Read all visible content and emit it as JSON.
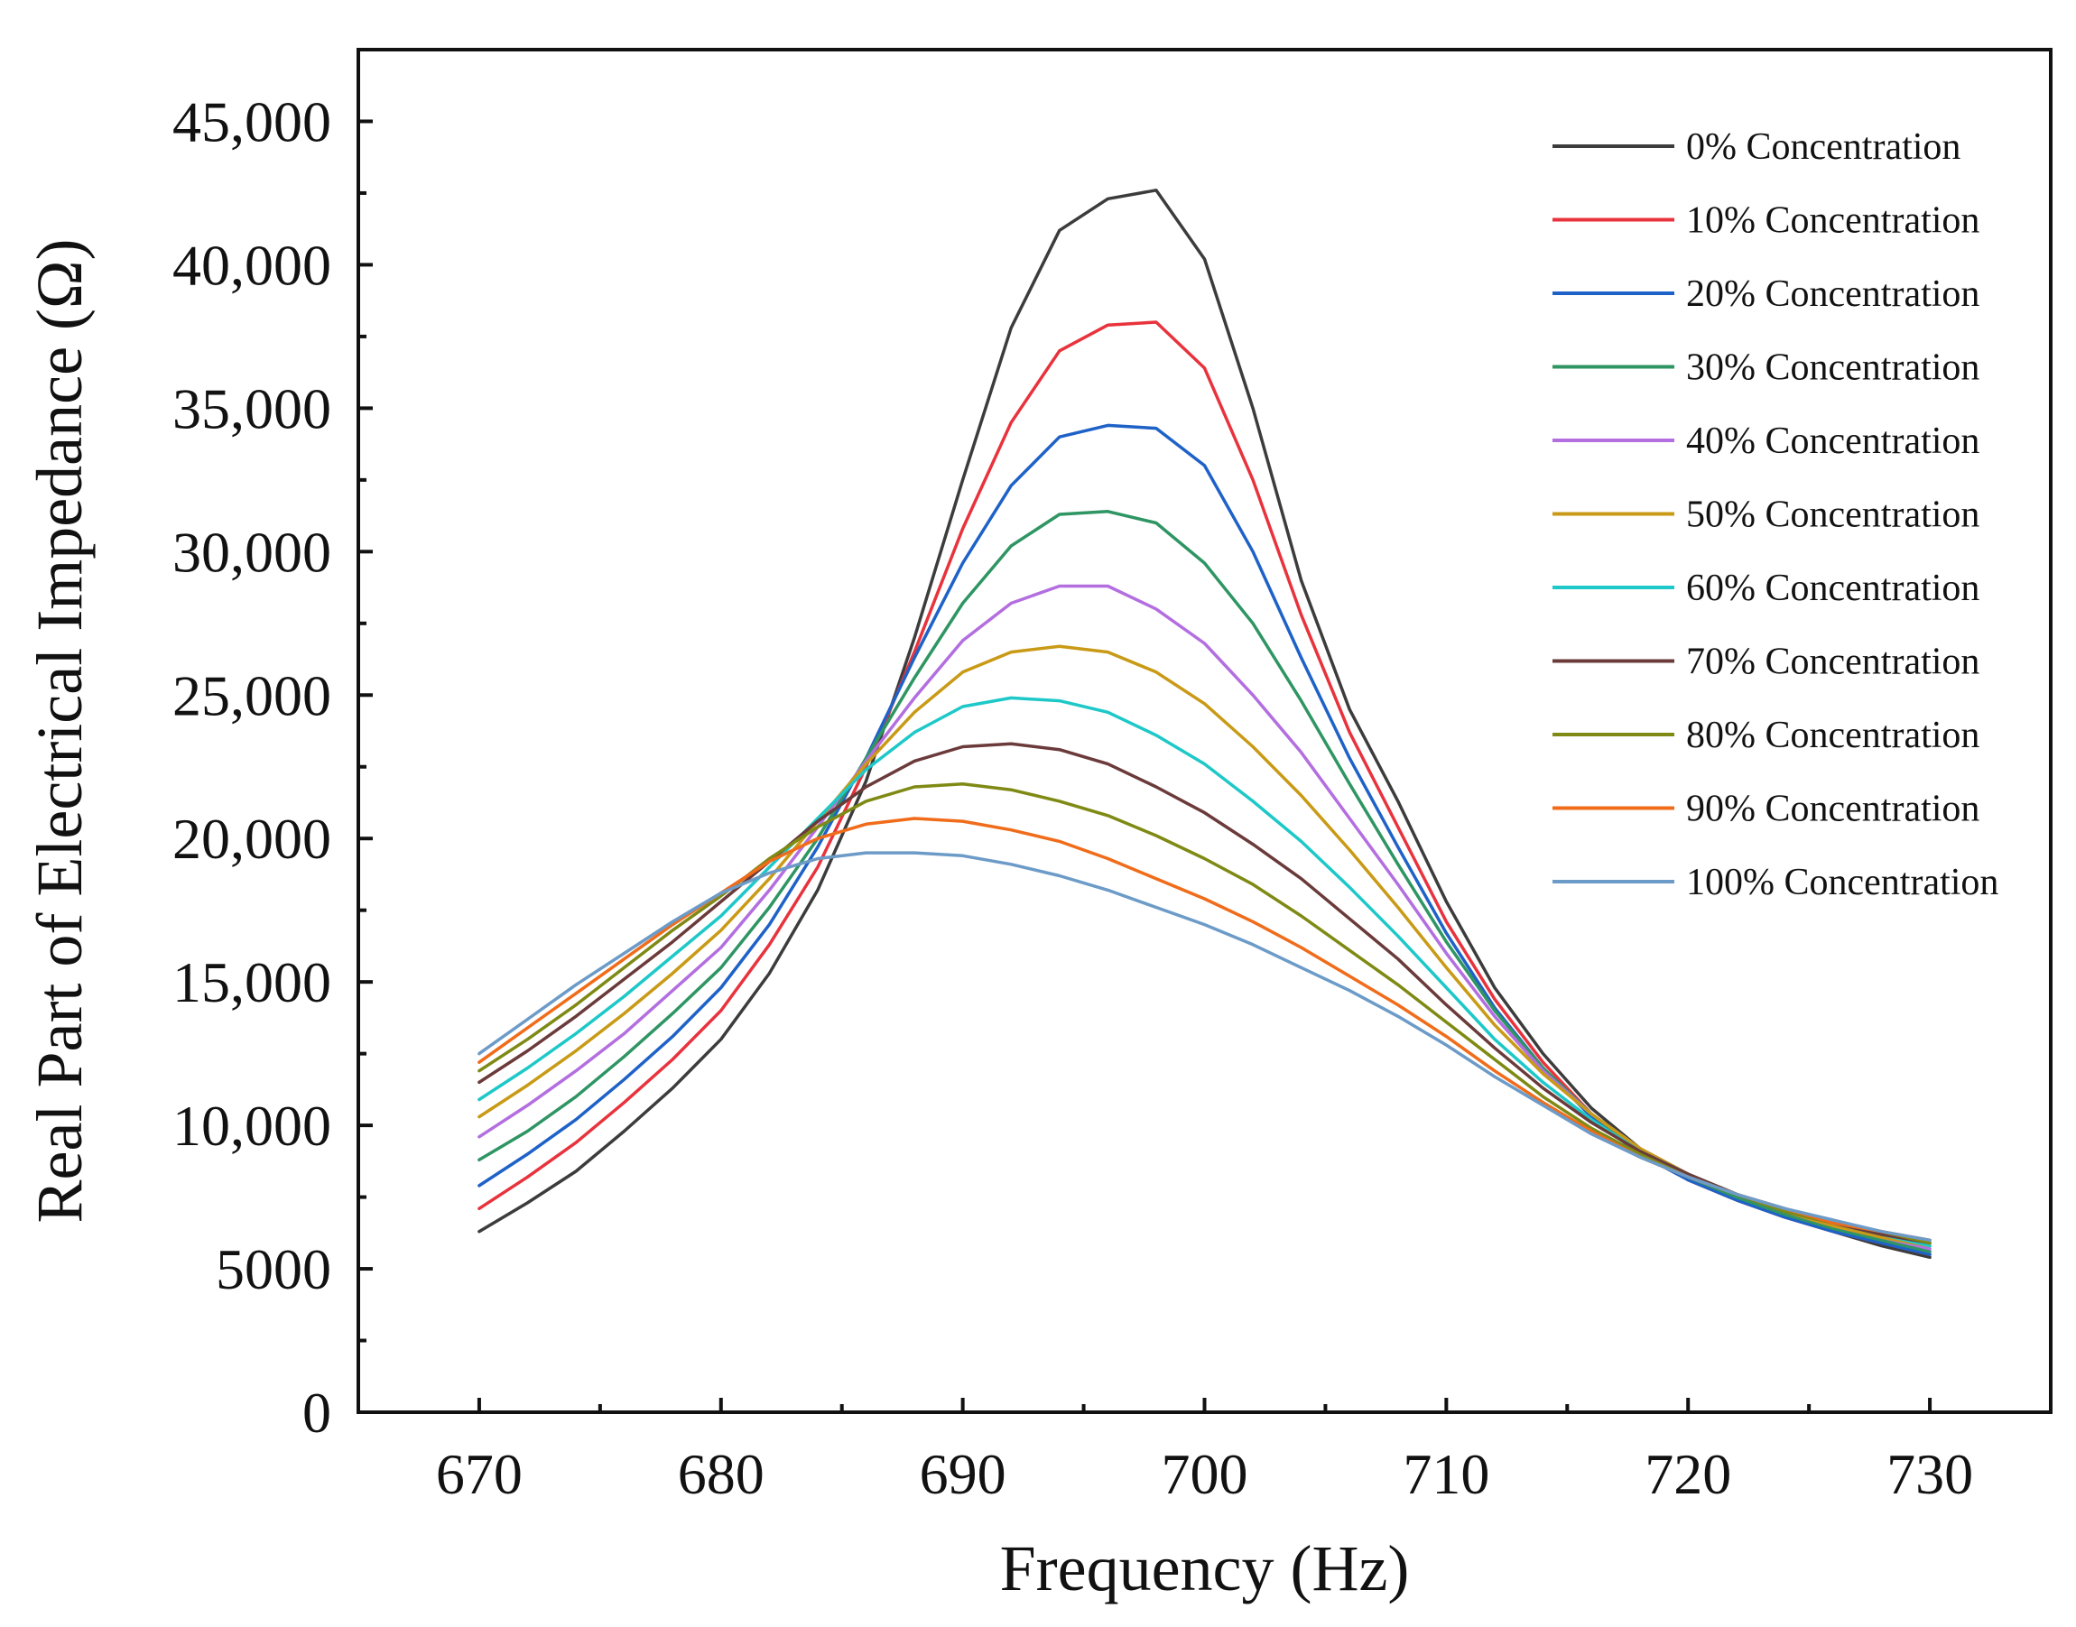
{
  "chart_data": {
    "type": "line",
    "title": "",
    "xlabel": "Frequency (Hz)",
    "ylabel": "Real Part of Electrical Impedance (Ω)",
    "xlim": [
      665,
      735
    ],
    "ylim": [
      0,
      47500
    ],
    "x_ticks": [
      670,
      680,
      690,
      700,
      710,
      720,
      730
    ],
    "x_tick_labels": [
      "670",
      "680",
      "690",
      "700",
      "710",
      "720",
      "730"
    ],
    "x_minor_ticks": [
      675,
      685,
      695,
      705,
      715,
      725
    ],
    "y_ticks": [
      0,
      5000,
      10000,
      15000,
      20000,
      25000,
      30000,
      35000,
      40000,
      45000
    ],
    "y_tick_labels": [
      "0",
      "5000",
      "10,000",
      "15,000",
      "20,000",
      "25,000",
      "30,000",
      "35,000",
      "40,000",
      "45,000"
    ],
    "y_minor_ticks": [
      2500,
      7500,
      12500,
      17500,
      22500,
      27500,
      32500,
      37500,
      42500
    ],
    "grid": false,
    "legend_position": "top-right",
    "x": [
      670,
      672,
      674,
      676,
      678,
      680,
      682,
      684,
      686,
      688,
      690,
      692,
      694,
      696,
      698,
      700,
      702,
      704,
      706,
      708,
      710,
      712,
      714,
      716,
      718,
      720,
      722,
      724,
      726,
      728,
      730
    ],
    "series": [
      {
        "name": "0% Concentration",
        "color": "#3c3c3c",
        "values": [
          6300,
          7300,
          8400,
          9800,
          11300,
          13000,
          15300,
          18200,
          22000,
          27000,
          32500,
          37800,
          41200,
          42300,
          42600,
          40200,
          35000,
          29000,
          24500,
          21300,
          17800,
          14800,
          12500,
          10600,
          9200,
          8100,
          7400,
          6800,
          6300,
          5800,
          5400
        ]
      },
      {
        "name": "10% Concentration",
        "color": "#e8333d",
        "values": [
          7100,
          8200,
          9400,
          10800,
          12300,
          14000,
          16300,
          19000,
          22500,
          26500,
          30800,
          34500,
          37000,
          37900,
          38000,
          36400,
          32500,
          27800,
          23700,
          20400,
          17100,
          14400,
          12200,
          10400,
          9100,
          8100,
          7400,
          6800,
          6300,
          5900,
          5500
        ]
      },
      {
        "name": "20% Concentration",
        "color": "#1e62c8",
        "values": [
          7900,
          9000,
          10200,
          11600,
          13100,
          14800,
          17000,
          19700,
          22800,
          26300,
          29600,
          32300,
          34000,
          34400,
          34300,
          33000,
          30000,
          26300,
          22800,
          19700,
          16700,
          14100,
          12000,
          10300,
          9000,
          8100,
          7400,
          6800,
          6300,
          5900,
          5500
        ]
      },
      {
        "name": "30% Concentration",
        "color": "#2e9563",
        "values": [
          8800,
          9800,
          11000,
          12400,
          13900,
          15500,
          17600,
          20000,
          22800,
          25600,
          28200,
          30200,
          31300,
          31400,
          31000,
          29600,
          27500,
          24800,
          21900,
          19100,
          16400,
          14000,
          12000,
          10400,
          9100,
          8200,
          7500,
          6900,
          6400,
          6000,
          5600
        ]
      },
      {
        "name": "40% Concentration",
        "color": "#b36ee0",
        "values": [
          9600,
          10700,
          11900,
          13200,
          14700,
          16200,
          18200,
          20400,
          22700,
          24900,
          26900,
          28200,
          28800,
          28800,
          28000,
          26800,
          25000,
          23000,
          20700,
          18400,
          16000,
          13800,
          11900,
          10400,
          9200,
          8300,
          7600,
          7000,
          6500,
          6100,
          5700
        ]
      },
      {
        "name": "50% Concentration",
        "color": "#c99a16",
        "values": [
          10300,
          11400,
          12600,
          13900,
          15300,
          16800,
          18600,
          20600,
          22600,
          24400,
          25800,
          26500,
          26700,
          26500,
          25800,
          24700,
          23200,
          21500,
          19600,
          17600,
          15500,
          13500,
          11800,
          10400,
          9200,
          8300,
          7600,
          7000,
          6500,
          6100,
          5800
        ]
      },
      {
        "name": "60% Concentration",
        "color": "#1ec8c8",
        "values": [
          10900,
          12000,
          13200,
          14500,
          15900,
          17300,
          19000,
          20700,
          22400,
          23700,
          24600,
          24900,
          24800,
          24400,
          23600,
          22600,
          21300,
          19900,
          18300,
          16600,
          14800,
          13000,
          11500,
          10200,
          9100,
          8300,
          7600,
          7000,
          6600,
          6200,
          5800
        ]
      },
      {
        "name": "70% Concentration",
        "color": "#6b3a3a",
        "values": [
          11500,
          12600,
          13800,
          15100,
          16400,
          17800,
          19200,
          20600,
          21800,
          22700,
          23200,
          23300,
          23100,
          22600,
          21800,
          20900,
          19800,
          18600,
          17200,
          15800,
          14200,
          12700,
          11300,
          10100,
          9100,
          8300,
          7600,
          7000,
          6600,
          6200,
          5900
        ]
      },
      {
        "name": "80% Concentration",
        "color": "#7f8a14",
        "values": [
          11900,
          13000,
          14200,
          15500,
          16800,
          18000,
          19300,
          20400,
          21300,
          21800,
          21900,
          21700,
          21300,
          20800,
          20100,
          19300,
          18400,
          17300,
          16100,
          14900,
          13600,
          12300,
          11000,
          9900,
          9000,
          8200,
          7600,
          7000,
          6600,
          6300,
          5900
        ]
      },
      {
        "name": "90% Concentration",
        "color": "#f06c1a",
        "values": [
          12200,
          13400,
          14600,
          15800,
          17000,
          18100,
          19200,
          20000,
          20500,
          20700,
          20600,
          20300,
          19900,
          19300,
          18600,
          17900,
          17100,
          16200,
          15200,
          14200,
          13100,
          11900,
          10800,
          9800,
          8900,
          8200,
          7600,
          7100,
          6600,
          6300,
          6000
        ]
      },
      {
        "name": "100% Concentration",
        "color": "#6c9bc8",
        "values": [
          12500,
          13700,
          14900,
          16000,
          17100,
          18100,
          18800,
          19300,
          19500,
          19500,
          19400,
          19100,
          18700,
          18200,
          17600,
          17000,
          16300,
          15500,
          14700,
          13800,
          12800,
          11700,
          10700,
          9700,
          8900,
          8200,
          7600,
          7100,
          6700,
          6300,
          6000
        ]
      }
    ]
  }
}
